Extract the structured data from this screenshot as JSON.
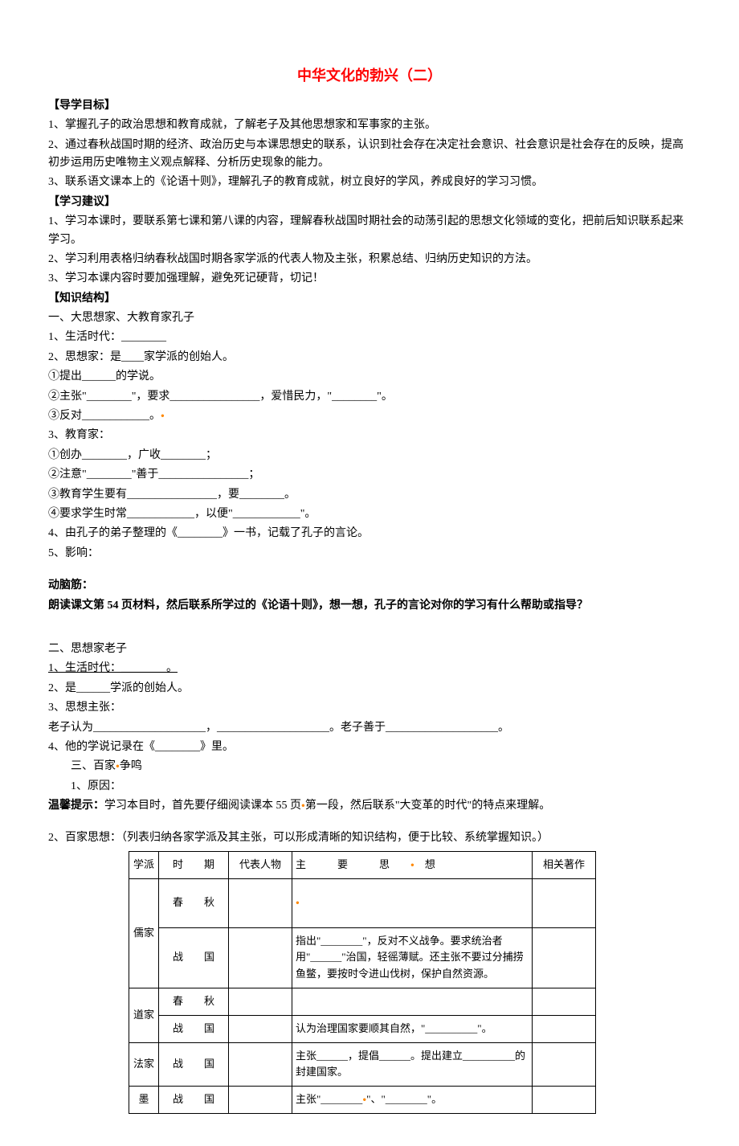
{
  "title": "中华文化的勃兴（二）",
  "sections": {
    "goals": {
      "header": "【导学目标】",
      "items": [
        "1、掌握孔子的政治思想和教育成就，了解老子及其他思想家和军事家的主张。",
        "2、通过春秋战国时期的经济、政治历史与本课思想史的联系，认识到社会存在决定社会意识、社会意识是社会存在的反映，提高初步运用历史唯物主义观点解释、分析历史现象的能力。",
        "3、联系语文课本上的《论语十则》，理解孔子的教育成就，树立良好的学风，养成良好的学习习惯。"
      ]
    },
    "advice": {
      "header": "【学习建议】",
      "items": [
        "1、学习本课时，要联系第七课和第八课的内容，理解春秋战国时期社会的动荡引起的思想文化领域的变化，把前后知识联系起来学习。",
        "2、学习利用表格归纳春秋战国时期各家学派的代表人物及主张，积累总结、归纳历史知识的方法。",
        "3、学习本课内容时要加强理解，避免死记硬背，切记！"
      ]
    },
    "structure": {
      "header": "【知识结构】",
      "part1": {
        "title": "一、大思想家、大教育家孔子",
        "l1": "1、生活时代：________",
        "l2": "2、思想家：是____家学派的创始人。",
        "l2a": "①提出______的学说。",
        "l2b": "②主张\"________\"，要求________________，爱惜民力，\"________\"。",
        "l2c": "③反对____________。",
        "l3": "3、教育家：",
        "l3a": "①创办________，广收________；",
        "l3b": "②注意\"________\"善于________________；",
        "l3c": "③教育学生要有________________，要________。",
        "l3d": "④要求学生时常____________，以便\"____________\"。",
        "l4": "4、由孔子的弟子整理的《________》一书，记载了孔子的言论。",
        "l5": "5、影响："
      },
      "brain": {
        "h": "动脑筋：",
        "q": "朗读课文第 54 页材料，然后联系所学过的《论语十则》，想一想，孔子的言论对你的学习有什么帮助或指导？"
      },
      "part2": {
        "title": "二、思想家老子",
        "l1": "1、生活时代：________。",
        "l2": "2、是______学派的创始人。",
        "l3": "3、思想主张：",
        "l3a": "老子认为____________________，____________________。老子善于____________________。",
        "l4": "4、他的学说记录在《________》里。"
      },
      "part3": {
        "title": "三、百家争鸣",
        "l1": "1、原因：",
        "tip_label": "温馨提示：",
        "tip": "学习本目时，首先要仔细阅读课本 55 页第一段，然后联系\"大变革的时代\"的特点来理解。",
        "l2": "2、百家思想：（列表归纳各家学派及其主张，可以形成清晰的知识结构，便于比较、系统掌握知识。）"
      }
    }
  },
  "table": {
    "header": {
      "c1": "学派",
      "c2": "时　　期",
      "c3": "代表人物",
      "c4": "主　　　要　　　思　　　想",
      "c5": "相关著作"
    },
    "rujia": {
      "name": "儒家",
      "r1_period": "春　　秋",
      "r2_period": "战　　国",
      "r2_thought": "指出\"________\"，反对不义战争。要求统治者用\"______\"治国，轻徭薄赋。还主张不要过分捕捞鱼鳖，要按时令进山伐树，保护自然资源。"
    },
    "daojia": {
      "name": "道家",
      "r1_period": "春　　秋",
      "r2_period": "战　　国",
      "r2_thought": "认为治理国家要顺其自然，\"__________\"。"
    },
    "fajia": {
      "name": "法家",
      "period": "战　　国",
      "thought": "主张______，提倡______。提出建立__________的封建国家。"
    },
    "mojia": {
      "name": "墨",
      "period": "战　　国",
      "thought": "主张\"________\"、\"________\"。"
    }
  }
}
